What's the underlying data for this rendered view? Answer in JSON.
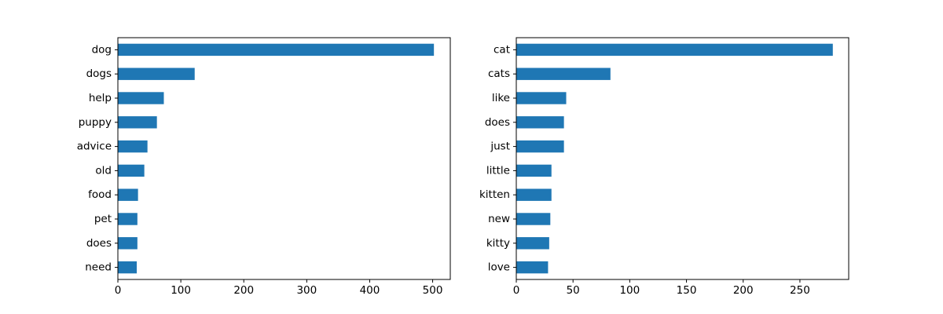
{
  "chart_data": [
    {
      "type": "bar",
      "orientation": "horizontal",
      "categories": [
        "dog",
        "dogs",
        "help",
        "puppy",
        "advice",
        "old",
        "food",
        "pet",
        "does",
        "need"
      ],
      "values": [
        502,
        122,
        73,
        62,
        47,
        42,
        32,
        31,
        31,
        30
      ],
      "xlim": [
        0,
        528
      ],
      "xticks": [
        0,
        100,
        200,
        300,
        400,
        500
      ],
      "color": "#1f77b4",
      "grid": false,
      "title": "",
      "xlabel": "",
      "ylabel": ""
    },
    {
      "type": "bar",
      "orientation": "horizontal",
      "categories": [
        "cat",
        "cats",
        "like",
        "does",
        "just",
        "little",
        "kitten",
        "new",
        "kitty",
        "love"
      ],
      "values": [
        279,
        83,
        44,
        42,
        42,
        31,
        31,
        30,
        29,
        28
      ],
      "xlim": [
        0,
        293
      ],
      "xticks": [
        0,
        50,
        100,
        150,
        200,
        250
      ],
      "color": "#1f77b4",
      "grid": false,
      "title": "",
      "xlabel": "",
      "ylabel": ""
    }
  ]
}
